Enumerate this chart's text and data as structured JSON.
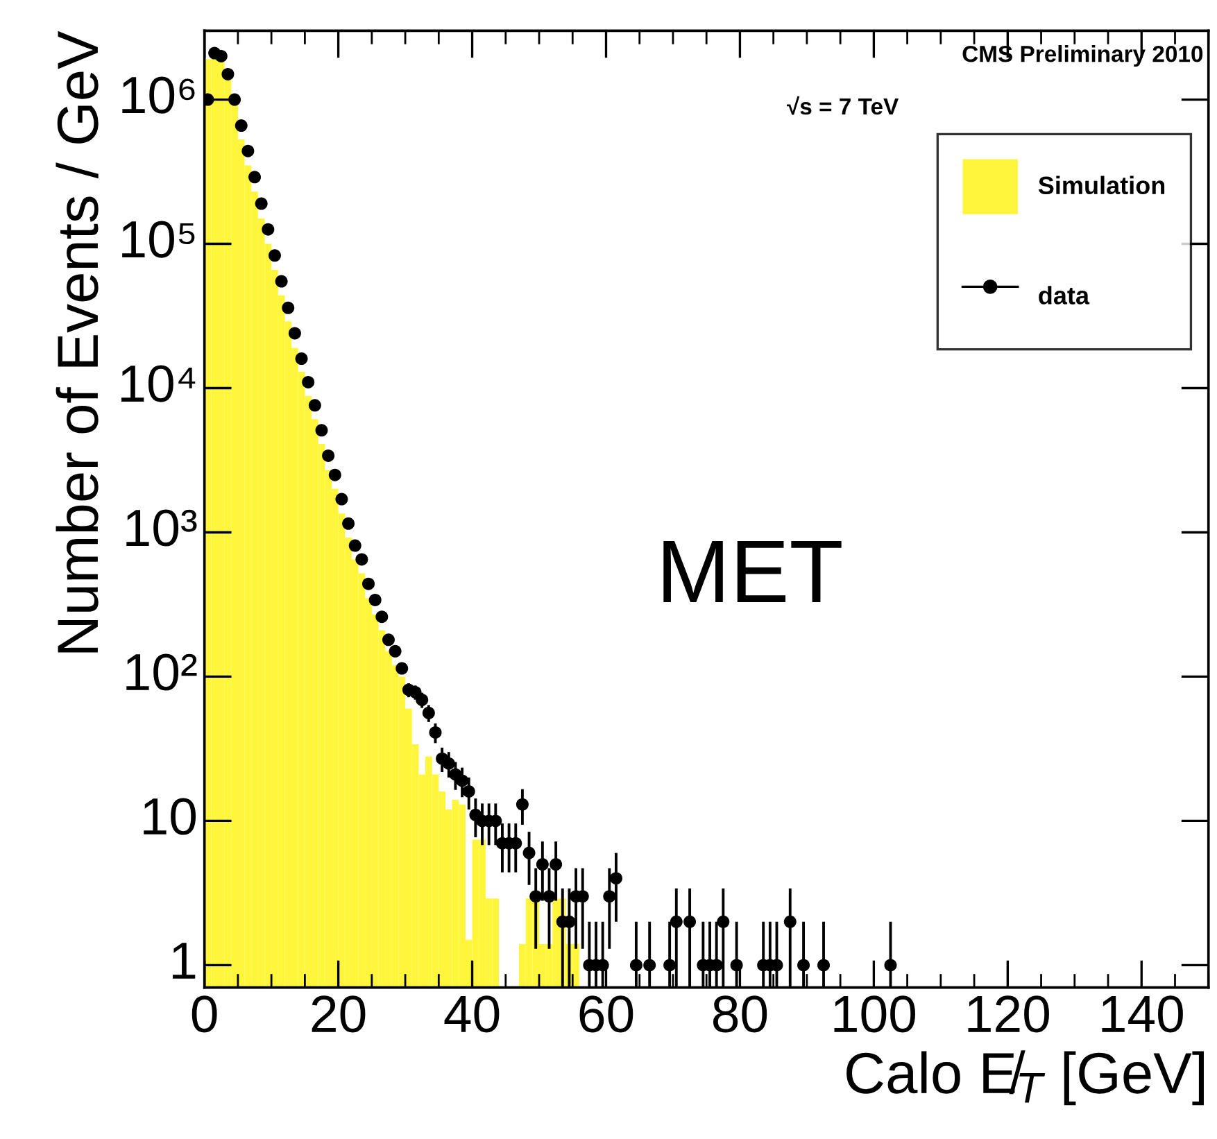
{
  "chart_data": {
    "type": "histogram",
    "xlabel": "Calo E̸$_{T}$ [GeV]",
    "ylabel": "Number of Events / GeV",
    "annotations": [
      "CMS Preliminary 2010",
      "√s = 7 TeV",
      "MET"
    ],
    "bins": [
      0,
      1,
      2,
      3,
      4,
      5,
      6,
      7,
      8,
      9,
      10,
      11,
      12,
      13,
      14,
      15,
      16,
      17,
      18,
      19,
      20,
      21,
      22,
      23,
      24,
      25,
      26,
      27,
      28,
      29,
      30,
      31,
      32,
      33,
      34,
      35,
      36,
      37,
      38,
      39,
      40,
      41,
      42,
      43,
      44,
      45,
      46,
      47,
      48,
      49,
      50,
      51,
      52,
      53,
      54,
      55,
      56
    ],
    "series": [
      {
        "name": "Simulation",
        "type": "histogram",
        "color": "#fff53a",
        "values": [
          1900000,
          2000000,
          2000000,
          1400000,
          1000000,
          530000,
          350000,
          230000,
          150000,
          100000,
          66000,
          44000,
          29000,
          19000,
          13000,
          8800,
          6100,
          4100,
          2700,
          2000,
          1350,
          920,
          650,
          520,
          350,
          270,
          210,
          150,
          120,
          100,
          60,
          34,
          21,
          28,
          21,
          16,
          12,
          14,
          13,
          1.5,
          7.4,
          7.4,
          2.9,
          2.9,
          null,
          null,
          null,
          1.4,
          2.9,
          2.9,
          1.4,
          1.4,
          2.9,
          2.9,
          1.4,
          1.4
        ]
      },
      {
        "name": "data",
        "type": "scatter",
        "color": "#000000",
        "x": [
          0.5,
          1.5,
          2.5,
          3.5,
          4.5,
          5.5,
          6.5,
          7.5,
          8.5,
          9.5,
          10.5,
          11.5,
          12.5,
          13.5,
          14.5,
          15.5,
          16.5,
          17.5,
          18.5,
          19.5,
          20.5,
          21.5,
          22.5,
          23.5,
          24.5,
          25.5,
          26.5,
          27.5,
          28.5,
          29.5,
          30.5,
          31.5,
          32.5,
          33.5,
          34.5,
          35.5,
          36.5,
          37.5,
          38.5,
          39.5,
          40.5,
          41.5,
          42.5,
          43.5,
          44.5,
          45.5,
          46.5,
          47.5,
          48.5,
          49.5,
          50.5,
          51.5,
          52.5,
          53.5,
          54.5,
          55.5,
          56.5,
          57.5,
          58.5,
          59.5,
          60.5,
          61.5,
          64.5,
          66.5,
          69.5,
          70.5,
          72.5,
          74.5,
          75.5,
          76.5,
          77.5,
          79.5,
          83.5,
          84.5,
          85.5,
          87.5,
          89.5,
          92.5,
          102.5
        ],
        "values": [
          1000000,
          2100000,
          2000000,
          1500000,
          1000000,
          660000,
          440000,
          290000,
          190000,
          126000,
          83000,
          55000,
          36000,
          24000,
          16000,
          11000,
          7600,
          5100,
          3400,
          2500,
          1700,
          1150,
          810,
          650,
          440,
          340,
          260,
          180,
          150,
          114,
          81,
          78,
          69,
          56,
          41,
          27,
          25,
          21,
          19,
          16,
          11,
          10,
          10,
          10,
          7,
          7,
          7,
          13,
          6,
          3,
          5,
          3,
          5,
          2,
          2,
          3,
          3,
          1,
          1,
          1,
          3,
          4,
          1,
          1,
          1,
          2,
          2,
          1,
          1,
          1,
          2,
          1,
          1,
          1,
          1,
          2,
          1,
          1,
          1
        ],
        "errors": [
          null,
          null,
          null,
          null,
          null,
          null,
          null,
          null,
          null,
          null,
          null,
          null,
          null,
          null,
          null,
          null,
          null,
          null,
          null,
          null,
          null,
          null,
          null,
          null,
          null,
          null,
          null,
          null,
          null,
          null,
          [
            72,
            90
          ],
          [
            69.2,
            86.8
          ],
          [
            60.7,
            77.3
          ],
          [
            48.5,
            63.5
          ],
          [
            34.6,
            47.4
          ],
          [
            21.8,
            32.2
          ],
          [
            20,
            30
          ],
          [
            16.4,
            25.6
          ],
          [
            14.6,
            23.4
          ],
          [
            12,
            20
          ],
          [
            7.7,
            14.3
          ],
          [
            6.8,
            13.2
          ],
          [
            6.8,
            13.2
          ],
          [
            6.8,
            13.2
          ],
          [
            4.4,
            9.6
          ],
          [
            4.4,
            9.6
          ],
          [
            4.4,
            9.6
          ],
          [
            9.4,
            16.6
          ],
          [
            3.6,
            8.4
          ],
          [
            1.3,
            4.7
          ],
          [
            2.8,
            7.2
          ],
          [
            1.3,
            4.7
          ],
          [
            2.8,
            7.2
          ],
          [
            0.7,
            3.4
          ],
          [
            0.7,
            3.4
          ],
          [
            1.3,
            4.7
          ],
          [
            1.3,
            4.7
          ],
          [
            0.7,
            2
          ],
          [
            0.7,
            2
          ],
          [
            0.7,
            2
          ],
          [
            1.3,
            4.7
          ],
          [
            2,
            6
          ],
          [
            0.7,
            2
          ],
          [
            0.7,
            2
          ],
          [
            0.7,
            2
          ],
          [
            0.7,
            3.4
          ],
          [
            0.7,
            3.4
          ],
          [
            0.7,
            2
          ],
          [
            0.7,
            2
          ],
          [
            0.7,
            2
          ],
          [
            0.7,
            3.4
          ],
          [
            0.7,
            2
          ],
          [
            0.7,
            2
          ],
          [
            0.7,
            2
          ],
          [
            0.7,
            2
          ],
          [
            0.7,
            3.4
          ],
          [
            0.7,
            2
          ],
          [
            0.7,
            2
          ],
          [
            0.7,
            2
          ]
        ],
        "marker": "circle"
      }
    ],
    "log": "y",
    "xlim": [
      0,
      150
    ],
    "xticks": [
      0,
      20,
      40,
      60,
      80,
      100,
      120,
      140
    ],
    "ylim": [
      0.7,
      3000000
    ],
    "yticks": [
      1,
      10,
      {
        "value": 100,
        "label": "10²"
      },
      {
        "value": 1000,
        "label": "10³"
      },
      {
        "value": 10000,
        "label": "10⁴"
      },
      {
        "value": 100000,
        "label": "10⁵"
      },
      {
        "value": 1000000,
        "label": "10⁶"
      }
    ],
    "grid": false,
    "legend": "top right"
  }
}
